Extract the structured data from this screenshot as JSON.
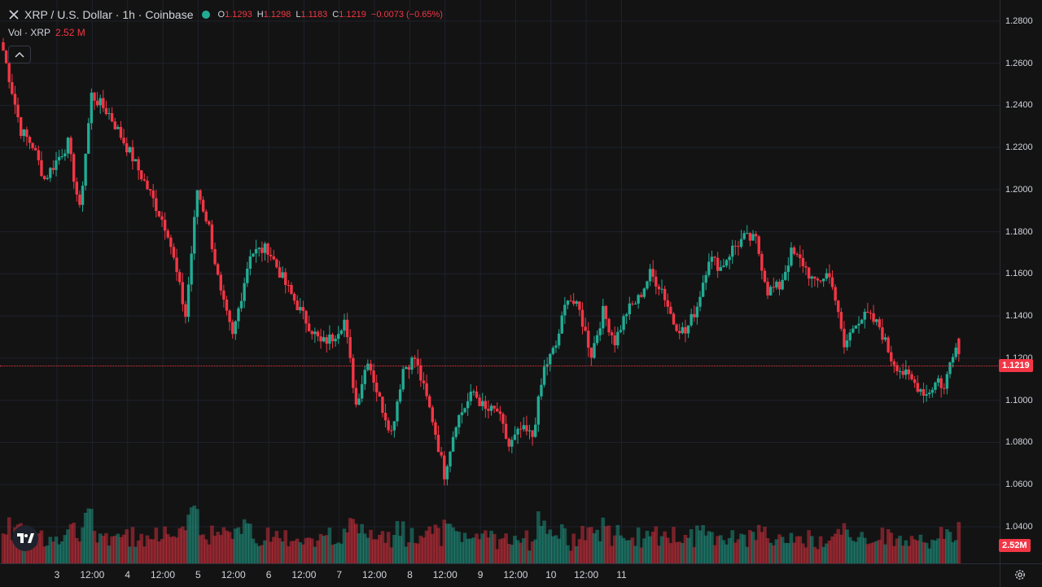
{
  "legend": {
    "symbol_title": "XRP / U.S. Dollar · 1h · Coinbase",
    "open_label": "O",
    "open": "1.1293",
    "high_label": "H",
    "high": "1.1298",
    "low_label": "L",
    "low": "1.1183",
    "close_label": "C",
    "close": "1.1219",
    "change": "−0.0073 (−0.65%)",
    "volume_label": "Vol · XRP",
    "volume": "2.52 M"
  },
  "price_axis": {
    "ticks": [
      "1.2800",
      "1.2600",
      "1.2400",
      "1.2200",
      "1.2000",
      "1.1800",
      "1.1600",
      "1.1400",
      "1.1200",
      "1.1000",
      "1.0800",
      "1.0600",
      "1.0400"
    ],
    "current_price": "1.1219",
    "current_volume": "2.52M"
  },
  "time_axis": {
    "labels": [
      "3",
      "12:00",
      "4",
      "12:00",
      "5",
      "12:00",
      "6",
      "12:00",
      "7",
      "12:00",
      "8",
      "12:00",
      "9",
      "12:00",
      "10",
      "12:00",
      "11"
    ]
  },
  "colors": {
    "up": "#22ab94",
    "down": "#f23645",
    "background": "#131313",
    "grid": "#1e222d"
  },
  "icons": {
    "symbol": "x-logo-icon",
    "settings": "gear-icon",
    "collapse": "chevron-up-icon",
    "brand": "tradingview-logo-icon"
  },
  "chart_data": {
    "type": "candlestick",
    "title": "XRP / U.S. Dollar · 1h · Coinbase",
    "x_unit": "hour",
    "ylim": [
      1.028,
      1.29
    ],
    "price_ticks": [
      1.28,
      1.26,
      1.24,
      1.22,
      1.2,
      1.18,
      1.16,
      1.14,
      1.12,
      1.1,
      1.08,
      1.06,
      1.04
    ],
    "keypoints": [
      [
        0,
        1.266
      ],
      [
        6,
        1.228
      ],
      [
        10,
        1.221
      ],
      [
        14,
        1.205
      ],
      [
        22,
        1.222
      ],
      [
        26,
        1.19
      ],
      [
        30,
        1.245
      ],
      [
        36,
        1.236
      ],
      [
        44,
        1.215
      ],
      [
        50,
        1.198
      ],
      [
        56,
        1.18
      ],
      [
        62,
        1.14
      ],
      [
        66,
        1.2
      ],
      [
        70,
        1.182
      ],
      [
        74,
        1.15
      ],
      [
        78,
        1.13
      ],
      [
        84,
        1.17
      ],
      [
        90,
        1.172
      ],
      [
        96,
        1.155
      ],
      [
        102,
        1.14
      ],
      [
        108,
        1.127
      ],
      [
        112,
        1.13
      ],
      [
        116,
        1.138
      ],
      [
        120,
        1.098
      ],
      [
        124,
        1.12
      ],
      [
        128,
        1.1
      ],
      [
        132,
        1.085
      ],
      [
        136,
        1.115
      ],
      [
        140,
        1.12
      ],
      [
        146,
        1.091
      ],
      [
        150,
        1.065
      ],
      [
        154,
        1.09
      ],
      [
        160,
        1.104
      ],
      [
        164,
        1.095
      ],
      [
        168,
        1.095
      ],
      [
        172,
        1.078
      ],
      [
        176,
        1.086
      ],
      [
        180,
        1.083
      ],
      [
        184,
        1.115
      ],
      [
        188,
        1.126
      ],
      [
        192,
        1.15
      ],
      [
        196,
        1.142
      ],
      [
        200,
        1.122
      ],
      [
        204,
        1.142
      ],
      [
        208,
        1.128
      ],
      [
        212,
        1.142
      ],
      [
        216,
        1.148
      ],
      [
        220,
        1.16
      ],
      [
        224,
        1.153
      ],
      [
        228,
        1.137
      ],
      [
        232,
        1.132
      ],
      [
        236,
        1.145
      ],
      [
        240,
        1.168
      ],
      [
        244,
        1.163
      ],
      [
        248,
        1.172
      ],
      [
        252,
        1.177
      ],
      [
        256,
        1.176
      ],
      [
        260,
        1.152
      ],
      [
        264,
        1.154
      ],
      [
        268,
        1.17
      ],
      [
        272,
        1.165
      ],
      [
        276,
        1.155
      ],
      [
        280,
        1.16
      ],
      [
        282,
        1.156
      ],
      [
        284,
        1.14
      ],
      [
        286,
        1.125
      ],
      [
        290,
        1.138
      ],
      [
        294,
        1.14
      ],
      [
        298,
        1.135
      ],
      [
        302,
        1.12
      ],
      [
        306,
        1.113
      ],
      [
        310,
        1.108
      ],
      [
        314,
        1.103
      ],
      [
        318,
        1.11
      ],
      [
        320,
        1.105
      ],
      [
        322,
        1.118
      ],
      [
        324,
        1.128
      ],
      [
        325,
        1.122
      ]
    ],
    "volume_axis": "volume pane beneath price candles",
    "last_candle": {
      "open": 1.1293,
      "high": 1.1298,
      "low": 1.1183,
      "close": 1.1219,
      "volume_m": 2.52
    }
  }
}
